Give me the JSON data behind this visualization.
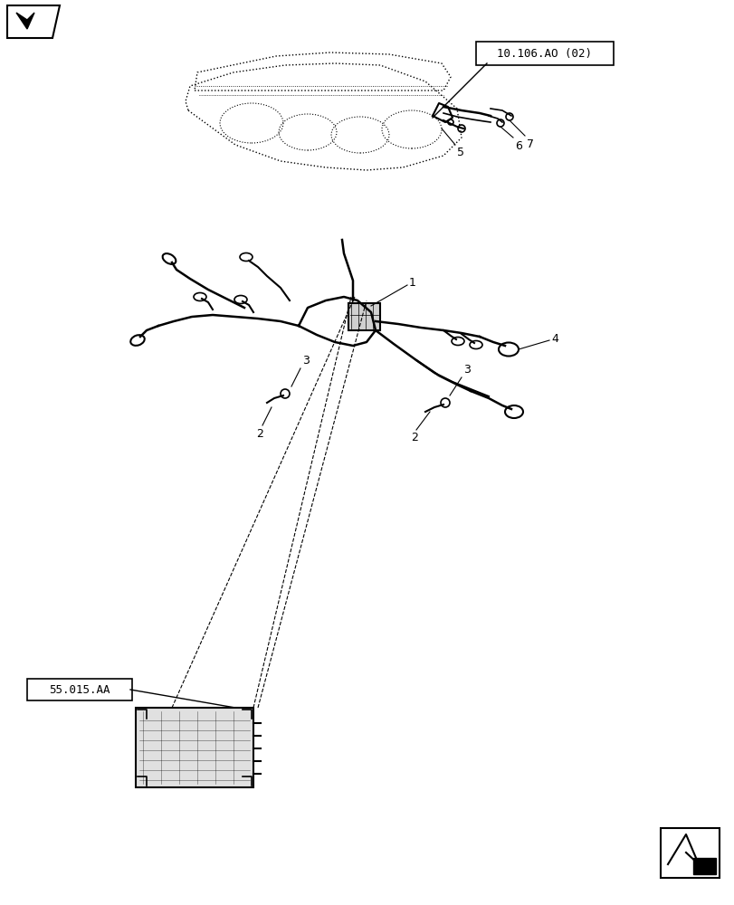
{
  "background_color": "#ffffff",
  "label_10106": "10.106.AO (02)",
  "label_55015": "55.015.AA",
  "line_color": "black",
  "line_width": 1.2
}
